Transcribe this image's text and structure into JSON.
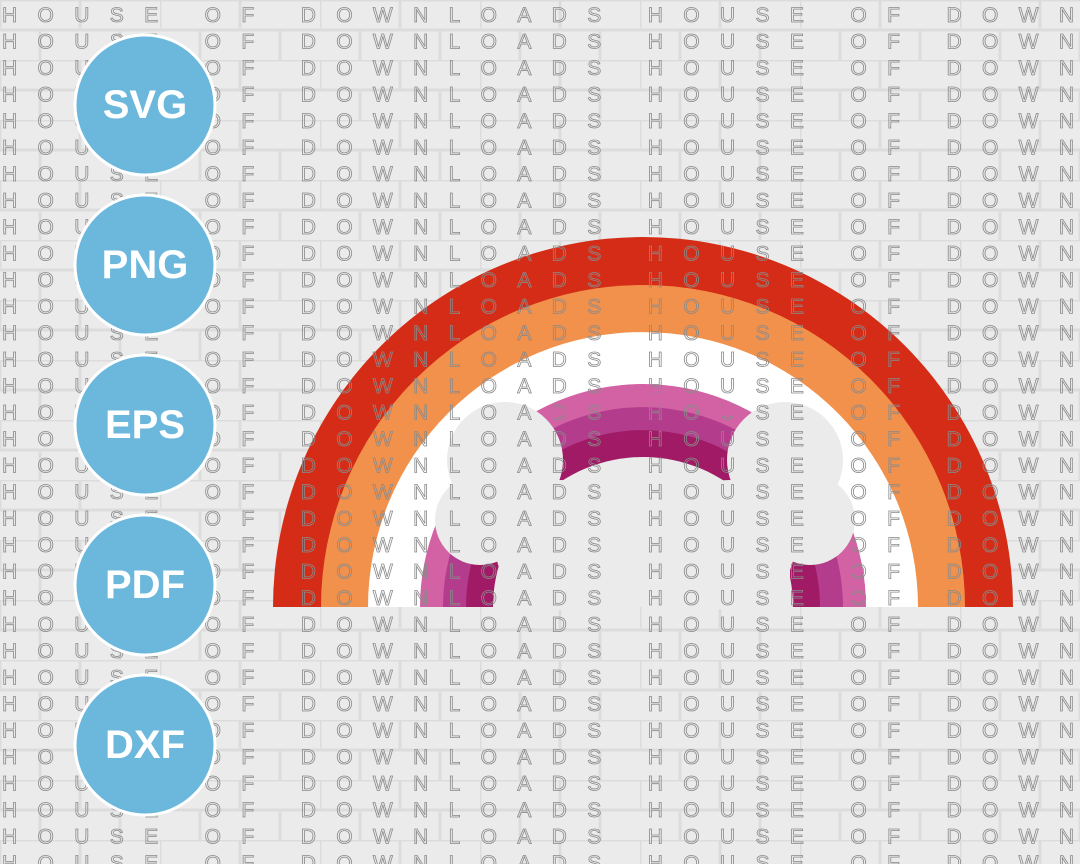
{
  "watermark": "HOUSE OF DOWNLOADS HOUSE OF DOWN",
  "badges": [
    "SVG",
    "PNG",
    "EPS",
    "PDF",
    "DXF"
  ]
}
